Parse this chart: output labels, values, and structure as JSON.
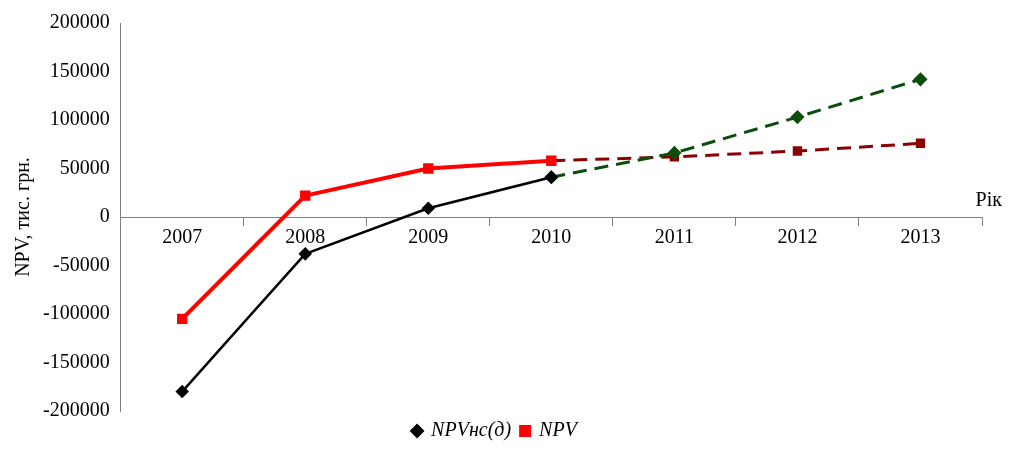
{
  "chart_data": {
    "type": "line",
    "xlabel": "Рік",
    "ylabel": "NPV, тис. грн.",
    "categories": [
      "2007",
      "2008",
      "2009",
      "2010",
      "2011",
      "2012",
      "2013"
    ],
    "series": [
      {
        "name": "NPVнс(д)",
        "color": "#000000",
        "marker": "diamond",
        "line_style": "solid",
        "values": [
          -180000,
          -38000,
          9000,
          41000,
          null,
          null,
          null
        ]
      },
      {
        "name": "NPV",
        "color": "#ff0000",
        "marker": "square",
        "line_style": "solid",
        "values": [
          -105000,
          22000,
          50000,
          58000,
          null,
          null,
          null
        ]
      },
      {
        "color": "#0b4d0b",
        "marker": "diamond",
        "line_style": "dashed",
        "values": [
          null,
          null,
          null,
          41000,
          66000,
          103000,
          142000
        ]
      },
      {
        "color": "#8b0000",
        "marker": "square",
        "line_style": "dashed",
        "values": [
          null,
          null,
          null,
          58000,
          62000,
          68000,
          76000
        ]
      }
    ],
    "ylim": [
      -200000,
      200000
    ],
    "yticks": [
      -200000,
      -150000,
      -100000,
      -50000,
      0,
      50000,
      100000,
      150000,
      200000
    ],
    "grid": false,
    "legend": "bottom"
  }
}
